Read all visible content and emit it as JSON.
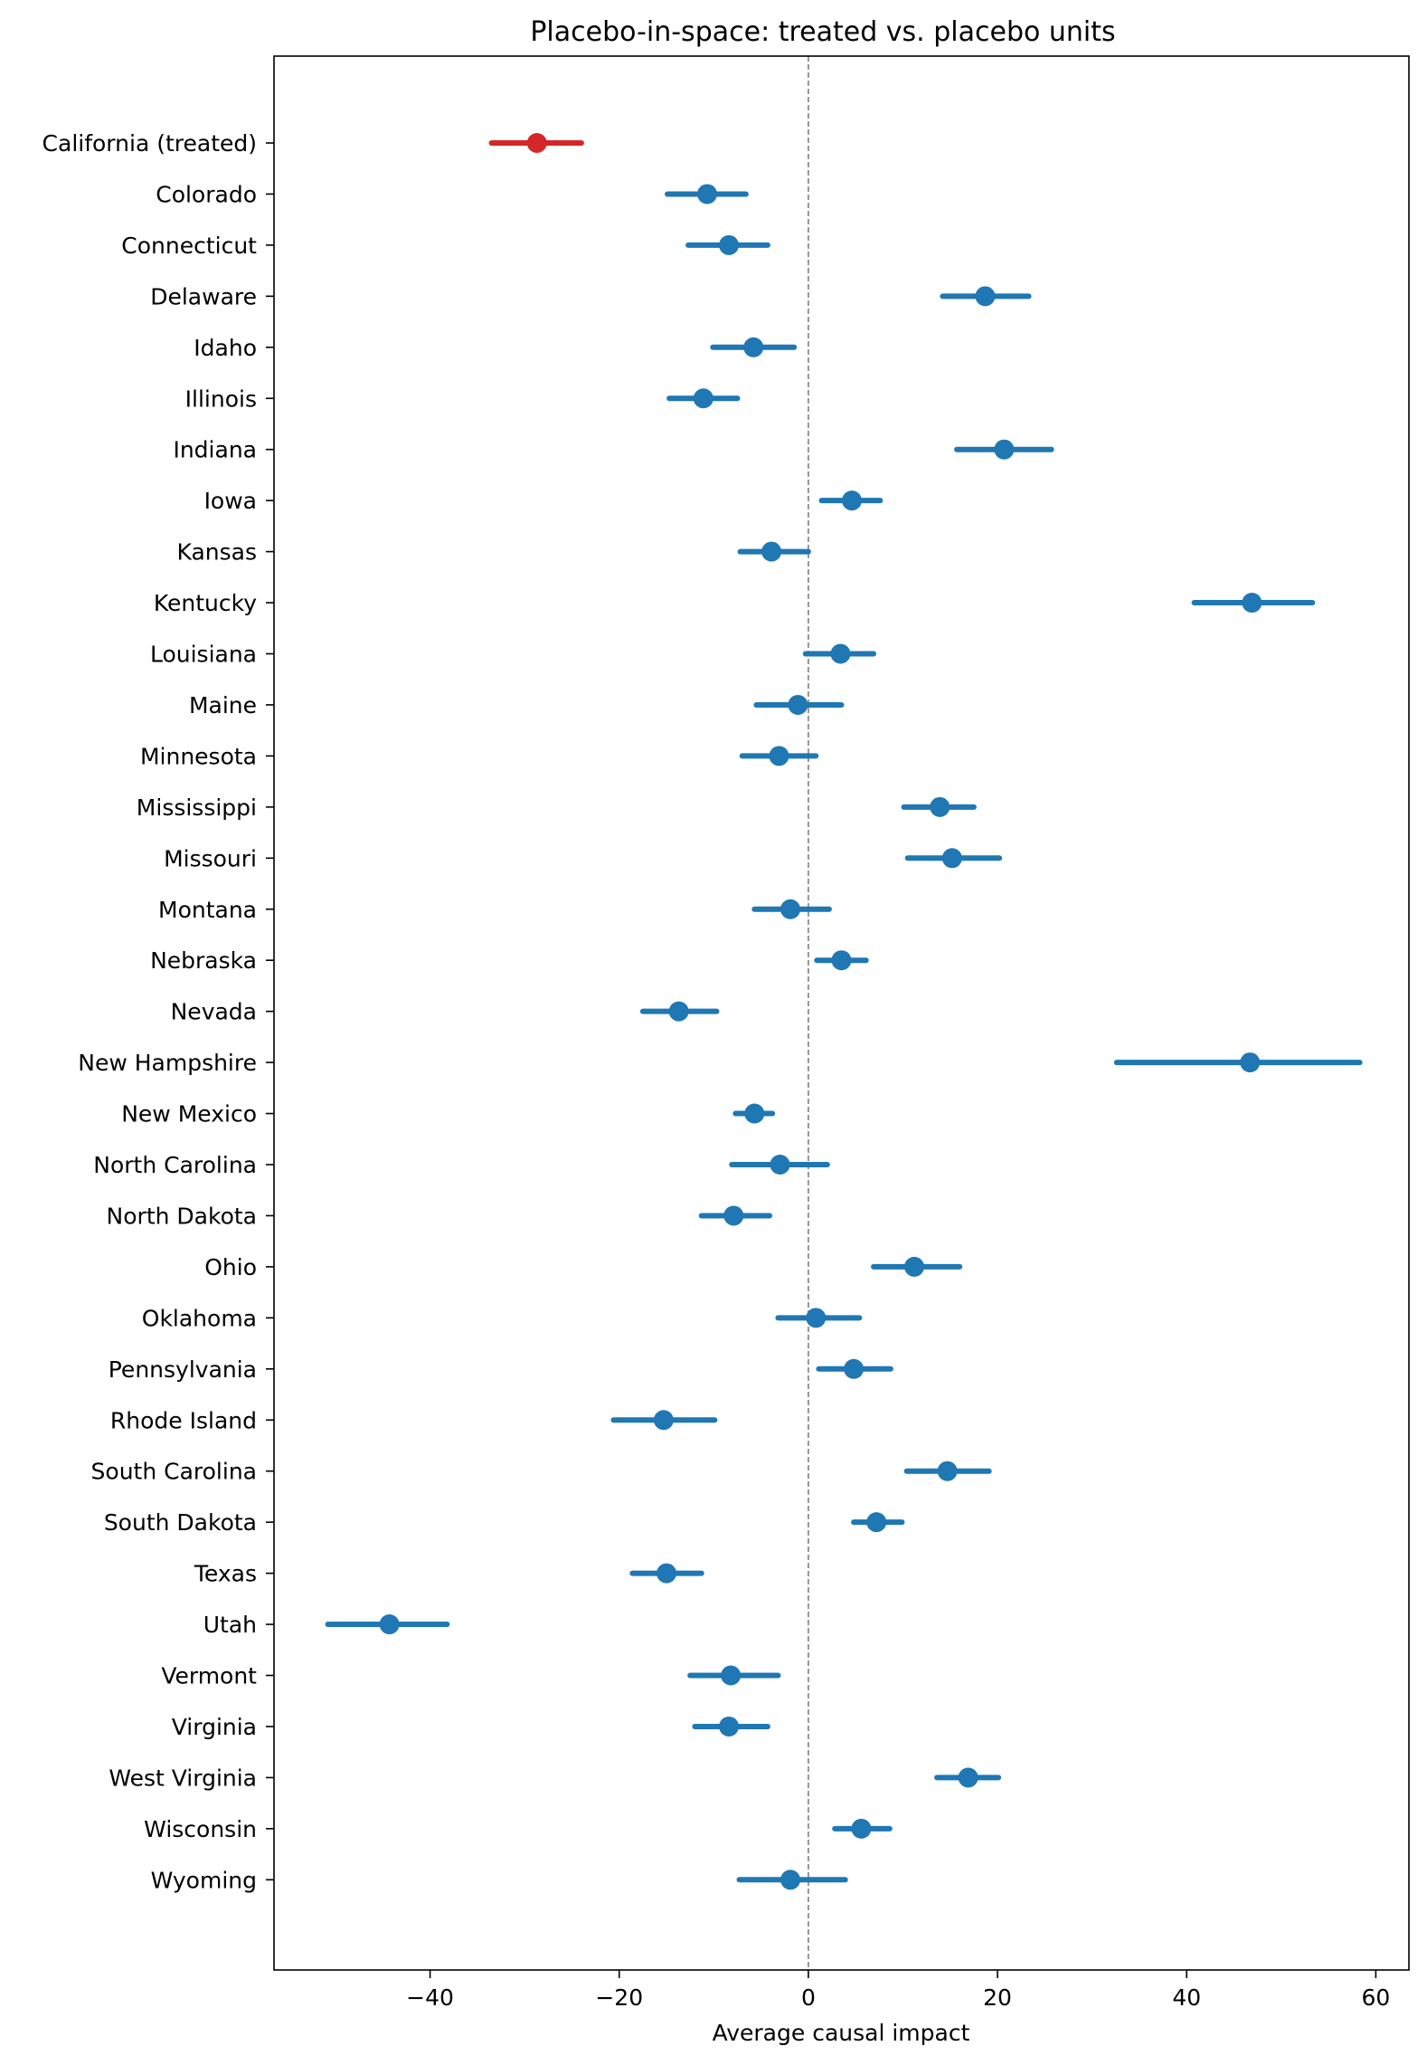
{
  "chart_data": {
    "type": "forest",
    "title": "Placebo-in-space: treated vs. placebo units",
    "xlabel": "Average causal impact",
    "ylabel": "",
    "xlim": [
      -56.5,
      63.5
    ],
    "xticks": [
      -40,
      -20,
      0,
      20,
      40,
      60
    ],
    "xtick_labels": [
      "−40",
      "−20",
      "0",
      "20",
      "40",
      "60"
    ],
    "reference_line": 0,
    "colors": {
      "treated": "#d62728",
      "placebo": "#1f77b4",
      "reference": "#808080"
    },
    "units": [
      {
        "label": "California (treated)",
        "estimate": -28.7,
        "lower": -33.5,
        "upper": -24.0,
        "treated": true
      },
      {
        "label": "Colorado",
        "estimate": -10.7,
        "lower": -14.9,
        "upper": -6.6
      },
      {
        "label": "Connecticut",
        "estimate": -8.4,
        "lower": -12.7,
        "upper": -4.3
      },
      {
        "label": "Delaware",
        "estimate": 18.7,
        "lower": 14.2,
        "upper": 23.3
      },
      {
        "label": "Idaho",
        "estimate": -5.8,
        "lower": -10.1,
        "upper": -1.5
      },
      {
        "label": "Illinois",
        "estimate": -11.1,
        "lower": -14.7,
        "upper": -7.5
      },
      {
        "label": "Indiana",
        "estimate": 20.7,
        "lower": 15.7,
        "upper": 25.7
      },
      {
        "label": "Iowa",
        "estimate": 4.6,
        "lower": 1.4,
        "upper": 7.6
      },
      {
        "label": "Kansas",
        "estimate": -3.9,
        "lower": -7.2,
        "upper": 0.0
      },
      {
        "label": "Kentucky",
        "estimate": 46.9,
        "lower": 40.8,
        "upper": 53.3
      },
      {
        "label": "Louisiana",
        "estimate": 3.4,
        "lower": -0.3,
        "upper": 6.9
      },
      {
        "label": "Maine",
        "estimate": -1.1,
        "lower": -5.5,
        "upper": 3.5
      },
      {
        "label": "Minnesota",
        "estimate": -3.1,
        "lower": -7.0,
        "upper": 0.8
      },
      {
        "label": "Mississippi",
        "estimate": 13.9,
        "lower": 10.1,
        "upper": 17.5
      },
      {
        "label": "Missouri",
        "estimate": 15.2,
        "lower": 10.5,
        "upper": 20.2
      },
      {
        "label": "Montana",
        "estimate": -1.9,
        "lower": -5.7,
        "upper": 2.2
      },
      {
        "label": "Nebraska",
        "estimate": 3.5,
        "lower": 0.9,
        "upper": 6.1
      },
      {
        "label": "Nevada",
        "estimate": -13.7,
        "lower": -17.5,
        "upper": -9.7
      },
      {
        "label": "New Hampshire",
        "estimate": 46.7,
        "lower": 32.6,
        "upper": 58.3
      },
      {
        "label": "New Mexico",
        "estimate": -5.7,
        "lower": -7.7,
        "upper": -3.8
      },
      {
        "label": "North Carolina",
        "estimate": -3.0,
        "lower": -8.1,
        "upper": 2.0
      },
      {
        "label": "North Dakota",
        "estimate": -7.9,
        "lower": -11.3,
        "upper": -4.1
      },
      {
        "label": "Ohio",
        "estimate": 11.2,
        "lower": 6.9,
        "upper": 16.0
      },
      {
        "label": "Oklahoma",
        "estimate": 0.8,
        "lower": -3.2,
        "upper": 5.4
      },
      {
        "label": "Pennsylvania",
        "estimate": 4.8,
        "lower": 1.1,
        "upper": 8.7
      },
      {
        "label": "Rhode Island",
        "estimate": -15.3,
        "lower": -20.6,
        "upper": -9.9
      },
      {
        "label": "South Carolina",
        "estimate": 14.7,
        "lower": 10.4,
        "upper": 19.1
      },
      {
        "label": "South Dakota",
        "estimate": 7.2,
        "lower": 4.8,
        "upper": 9.9
      },
      {
        "label": "Texas",
        "estimate": -15.0,
        "lower": -18.6,
        "upper": -11.3
      },
      {
        "label": "Utah",
        "estimate": -44.3,
        "lower": -50.8,
        "upper": -38.2
      },
      {
        "label": "Vermont",
        "estimate": -8.2,
        "lower": -12.5,
        "upper": -3.2
      },
      {
        "label": "Virginia",
        "estimate": -8.4,
        "lower": -12.0,
        "upper": -4.3
      },
      {
        "label": "West Virginia",
        "estimate": 16.9,
        "lower": 13.6,
        "upper": 20.1
      },
      {
        "label": "Wisconsin",
        "estimate": 5.6,
        "lower": 2.8,
        "upper": 8.6
      },
      {
        "label": "Wyoming",
        "estimate": -1.9,
        "lower": -7.3,
        "upper": 3.9
      }
    ]
  }
}
